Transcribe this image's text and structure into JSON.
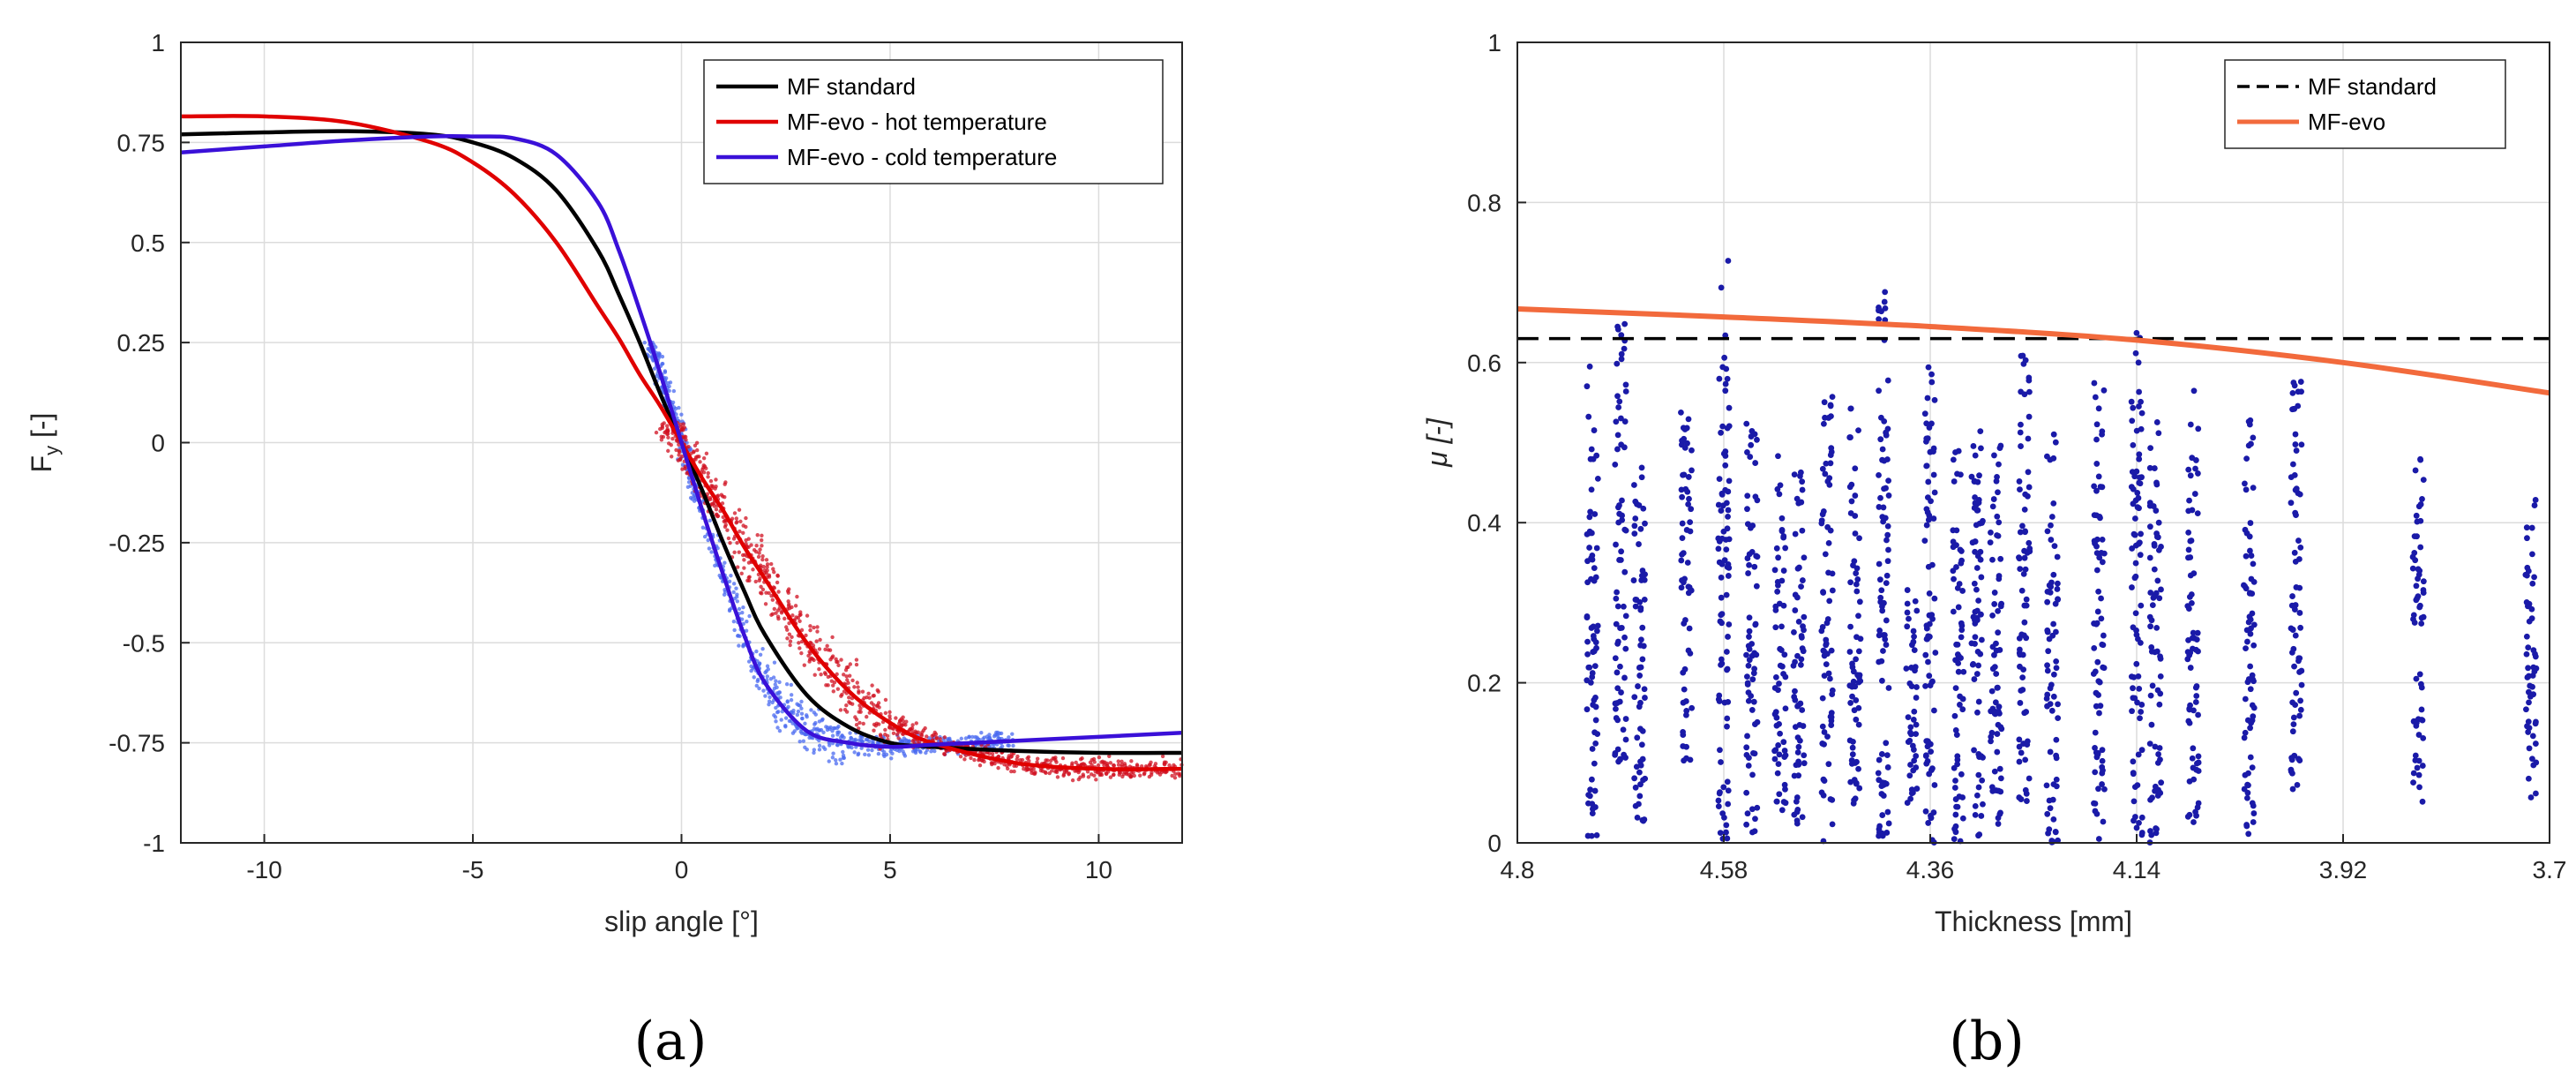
{
  "chart_data": [
    {
      "type": "line",
      "panel": "(a)",
      "title": "",
      "xlabel": "slip angle [°]",
      "ylabel": "F",
      "ylabel_sub": "y",
      "ylabel_suffix": " [-]",
      "xlim": [
        -12,
        12
      ],
      "ylim": [
        -1,
        1
      ],
      "xticks": [
        -10,
        -5,
        0,
        5,
        10
      ],
      "xtick_labels": [
        "-10",
        "-5",
        "0",
        "5",
        "10"
      ],
      "yticks": [
        1,
        0.75,
        0.5,
        0.25,
        0,
        -0.25,
        -0.5,
        -0.75,
        -1
      ],
      "ytick_labels": [
        "1",
        "0.75",
        "0.5",
        "0.25",
        "0",
        "-0.25",
        "-0.5",
        "-0.75",
        "-1"
      ],
      "grid": true,
      "legend_position": "top-right",
      "series": [
        {
          "name": "MF standard",
          "color": "#000000",
          "x": [
            -12,
            -10,
            -8,
            -6,
            -5,
            -4,
            -3,
            -2,
            -1.5,
            -1,
            -0.5,
            0,
            0.5,
            1,
            1.5,
            2,
            3,
            4,
            5,
            6,
            8,
            10,
            12
          ],
          "y": [
            0.77,
            0.775,
            0.778,
            0.77,
            0.75,
            0.71,
            0.63,
            0.48,
            0.37,
            0.25,
            0.12,
            0.0,
            -0.12,
            -0.25,
            -0.37,
            -0.48,
            -0.63,
            -0.71,
            -0.75,
            -0.76,
            -0.77,
            -0.775,
            -0.775
          ]
        },
        {
          "name": "MF-evo - hot temperature",
          "color": "#e00000",
          "x": [
            -12,
            -10,
            -8,
            -6,
            -5,
            -4,
            -3,
            -2,
            -1.5,
            -1,
            -0.5,
            0,
            0.5,
            1,
            1.5,
            2,
            3,
            4,
            5,
            6,
            8,
            10,
            12
          ],
          "y": [
            0.815,
            0.815,
            0.8,
            0.75,
            0.7,
            0.62,
            0.5,
            0.34,
            0.26,
            0.17,
            0.09,
            0.0,
            -0.09,
            -0.17,
            -0.26,
            -0.34,
            -0.5,
            -0.62,
            -0.7,
            -0.75,
            -0.8,
            -0.815,
            -0.815
          ]
        },
        {
          "name": "MF-evo - cold temperature",
          "color": "#3a10d8",
          "x": [
            -12,
            -10,
            -8,
            -6,
            -5,
            -4,
            -3,
            -2,
            -1.5,
            -1,
            -0.5,
            0,
            0.5,
            1,
            1.5,
            2,
            3,
            4,
            5,
            6,
            8,
            10,
            12
          ],
          "y": [
            0.725,
            0.74,
            0.755,
            0.765,
            0.765,
            0.76,
            0.72,
            0.6,
            0.48,
            0.33,
            0.17,
            0.0,
            -0.17,
            -0.33,
            -0.48,
            -0.6,
            -0.72,
            -0.75,
            -0.76,
            -0.755,
            -0.745,
            -0.735,
            -0.725
          ]
        }
      ],
      "scatter_series": [
        {
          "name": "hot temperature measurements",
          "color": "#d01020",
          "x": [
            -1,
            12
          ],
          "y_range_note": "dense cloud following hot curve"
        },
        {
          "name": "cold temperature measurements",
          "color": "#4a6af0",
          "x": [
            -1,
            8
          ],
          "y_range_note": "dense cloud following cold curve"
        }
      ]
    },
    {
      "type": "scatter",
      "panel": "(b)",
      "title": "",
      "xlabel": "Thickness [mm]",
      "ylabel": "μ [-]",
      "xlim": [
        4.8,
        3.7
      ],
      "ylim": [
        0,
        1
      ],
      "xticks": [
        4.8,
        4.58,
        4.36,
        4.14,
        3.92,
        3.7
      ],
      "xtick_labels": [
        "4.8",
        "4.58",
        "4.36",
        "4.14",
        "3.92",
        "3.7"
      ],
      "yticks": [
        1,
        0.8,
        0.6,
        0.4,
        0.2,
        0
      ],
      "ytick_labels": [
        "1",
        "0.8",
        "0.6",
        "0.4",
        "0.2",
        "0"
      ],
      "grid": true,
      "legend_position": "top-right",
      "series": [
        {
          "name": "MF standard",
          "color": "#000000",
          "style": "dashed",
          "x": [
            4.8,
            3.7
          ],
          "y": [
            0.63,
            0.63
          ]
        },
        {
          "name": "MF-evo",
          "color": "#f26a3c",
          "style": "solid",
          "x": [
            4.8,
            4.58,
            4.36,
            4.14,
            3.92,
            3.7
          ],
          "y": [
            0.667,
            0.657,
            0.645,
            0.628,
            0.6,
            0.562
          ]
        }
      ],
      "scatter_columns": {
        "color": "#1a1aa8",
        "columns": [
          {
            "x": 4.72,
            "ymin": 0.0,
            "ymax": 0.6
          },
          {
            "x": 4.69,
            "ymin": 0.1,
            "ymax": 0.67
          },
          {
            "x": 4.67,
            "ymin": 0.02,
            "ymax": 0.48
          },
          {
            "x": 4.62,
            "ymin": 0.1,
            "ymax": 0.54
          },
          {
            "x": 4.58,
            "ymin": 0.0,
            "ymax": 0.73
          },
          {
            "x": 4.55,
            "ymin": 0.0,
            "ymax": 0.53
          },
          {
            "x": 4.52,
            "ymin": 0.04,
            "ymax": 0.5
          },
          {
            "x": 4.5,
            "ymin": 0.02,
            "ymax": 0.48
          },
          {
            "x": 4.47,
            "ymin": 0.0,
            "ymax": 0.56
          },
          {
            "x": 4.44,
            "ymin": 0.04,
            "ymax": 0.56
          },
          {
            "x": 4.41,
            "ymin": 0.0,
            "ymax": 0.7
          },
          {
            "x": 4.38,
            "ymin": 0.05,
            "ymax": 0.33
          },
          {
            "x": 4.36,
            "ymin": 0.0,
            "ymax": 0.6
          },
          {
            "x": 4.33,
            "ymin": 0.0,
            "ymax": 0.5
          },
          {
            "x": 4.31,
            "ymin": 0.0,
            "ymax": 0.54
          },
          {
            "x": 4.29,
            "ymin": 0.02,
            "ymax": 0.55
          },
          {
            "x": 4.26,
            "ymin": 0.04,
            "ymax": 0.61
          },
          {
            "x": 4.23,
            "ymin": 0.0,
            "ymax": 0.52
          },
          {
            "x": 4.18,
            "ymin": 0.0,
            "ymax": 0.6
          },
          {
            "x": 4.14,
            "ymin": 0.0,
            "ymax": 0.65
          },
          {
            "x": 4.12,
            "ymin": 0.0,
            "ymax": 0.54
          },
          {
            "x": 4.08,
            "ymin": 0.02,
            "ymax": 0.57
          },
          {
            "x": 4.02,
            "ymin": 0.0,
            "ymax": 0.55
          },
          {
            "x": 3.97,
            "ymin": 0.05,
            "ymax": 0.59
          },
          {
            "x": 3.84,
            "ymin": 0.05,
            "ymax": 0.49
          },
          {
            "x": 3.72,
            "ymin": 0.05,
            "ymax": 0.43
          }
        ]
      }
    }
  ],
  "captions": {
    "a": "(a)",
    "b": "(b)"
  }
}
